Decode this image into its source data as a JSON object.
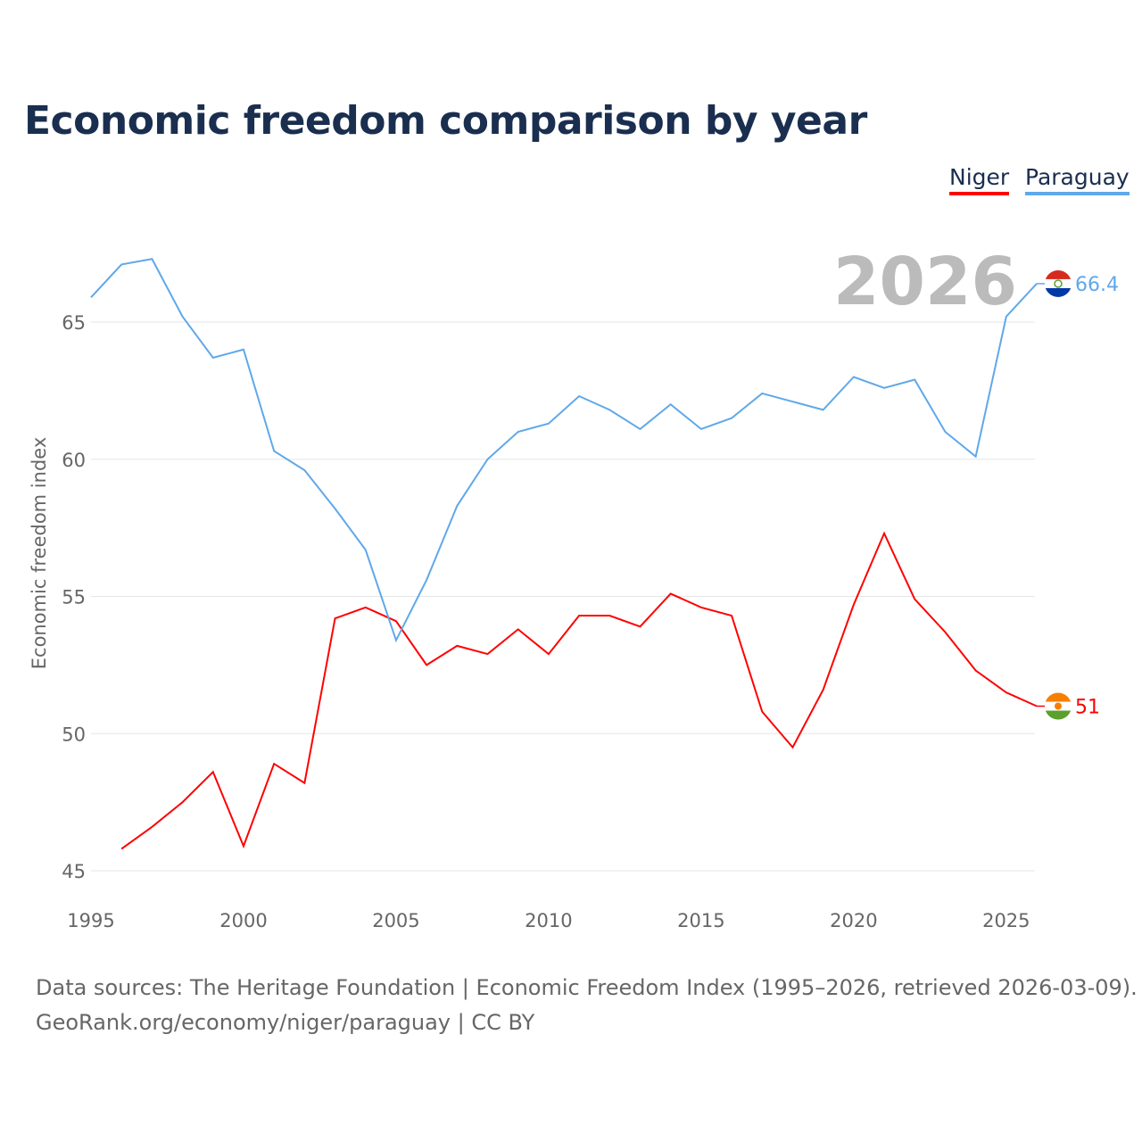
{
  "title": "Economic freedom comparison by year",
  "legend": {
    "niger": "Niger",
    "paraguay": "Paraguay"
  },
  "year_watermark": "2026",
  "source_line1": "Data sources: The Heritage Foundation | Economic Freedom Index (1995–2026, retrieved 2026-03-09).",
  "source_line2": "GeoRank.org/economy/niger/paraguay | CC BY",
  "chart_data": {
    "type": "line",
    "title": "Economic freedom comparison by year",
    "xlabel": "",
    "ylabel": "Economic freedom index",
    "xlim": [
      1995,
      2026
    ],
    "ylim": [
      45,
      67.5
    ],
    "xticks": [
      1995,
      2000,
      2005,
      2010,
      2015,
      2020,
      2025
    ],
    "yticks": [
      45,
      50,
      55,
      60,
      65
    ],
    "grid": true,
    "legend_position": "top-right",
    "series": [
      {
        "name": "Niger",
        "color": "#ff0000",
        "end_label": "51",
        "x": [
          1996,
          1997,
          1998,
          1999,
          2000,
          2001,
          2002,
          2003,
          2004,
          2005,
          2006,
          2007,
          2008,
          2009,
          2010,
          2011,
          2012,
          2013,
          2014,
          2015,
          2016,
          2017,
          2018,
          2019,
          2020,
          2021,
          2022,
          2023,
          2024,
          2025,
          2026
        ],
        "y": [
          45.8,
          46.6,
          47.5,
          48.6,
          45.9,
          48.9,
          48.2,
          54.2,
          54.6,
          54.1,
          52.5,
          53.2,
          52.9,
          53.8,
          52.9,
          54.3,
          54.3,
          53.9,
          55.1,
          54.6,
          54.3,
          50.8,
          49.5,
          51.6,
          54.7,
          57.3,
          54.9,
          53.7,
          52.3,
          51.5,
          51.0
        ]
      },
      {
        "name": "Paraguay",
        "color": "#5fa8ea",
        "end_label": "66.4",
        "x": [
          1995,
          1996,
          1997,
          1998,
          1999,
          2000,
          2001,
          2002,
          2003,
          2004,
          2005,
          2006,
          2007,
          2008,
          2009,
          2010,
          2011,
          2012,
          2013,
          2014,
          2015,
          2016,
          2017,
          2018,
          2019,
          2020,
          2021,
          2022,
          2023,
          2024,
          2025,
          2026
        ],
        "y": [
          65.9,
          67.1,
          67.3,
          65.2,
          63.7,
          64.0,
          60.3,
          59.6,
          58.2,
          56.7,
          53.4,
          55.6,
          58.3,
          60.0,
          61.0,
          61.3,
          62.3,
          61.8,
          61.1,
          62.0,
          61.1,
          61.5,
          62.4,
          62.1,
          61.8,
          63.0,
          62.6,
          62.9,
          61.0,
          60.1,
          65.2,
          66.4
        ]
      }
    ]
  }
}
